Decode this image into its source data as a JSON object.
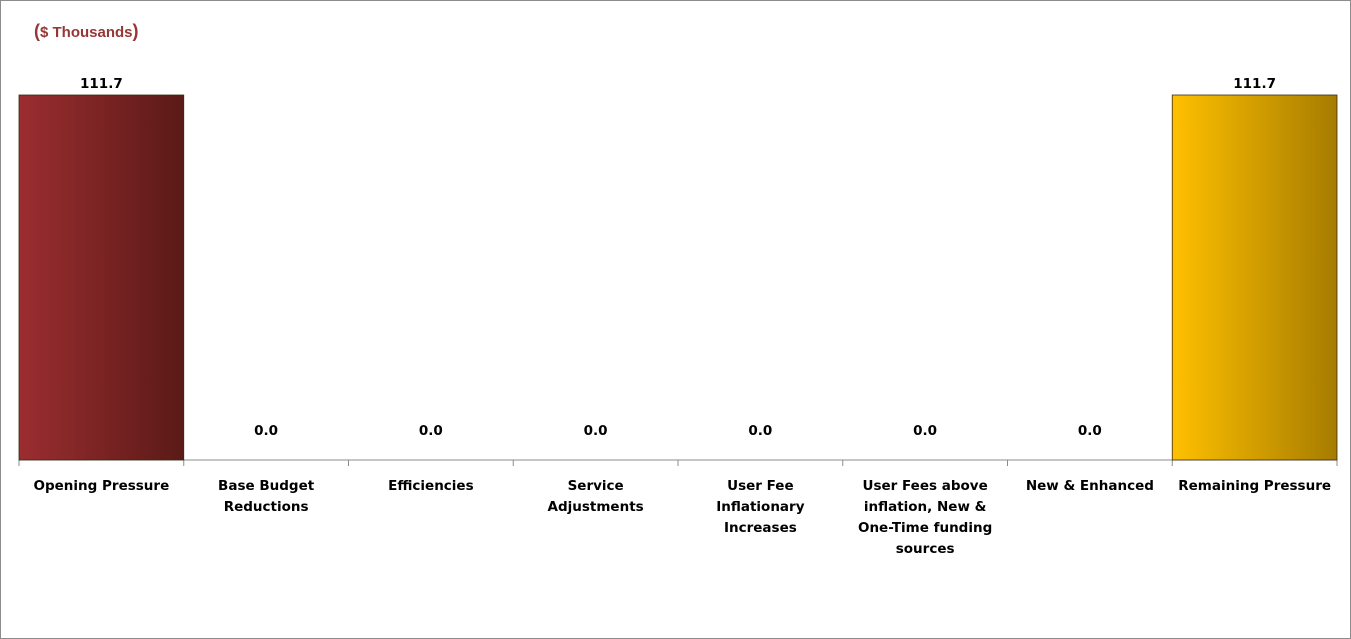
{
  "chart_data": {
    "type": "bar",
    "subtype": "waterfall",
    "units_label": "$ Thousands",
    "categories": [
      "Opening Pressure",
      "Base Budget Reductions",
      "Efficiencies",
      "Service Adjustments",
      "User Fee Inflationary Increases",
      "User Fees above inflation, New & One-Time funding sources",
      "New & Enhanced",
      "Remaining Pressure"
    ],
    "category_lines": [
      [
        "Opening Pressure"
      ],
      [
        "Base Budget",
        "Reductions"
      ],
      [
        "Efficiencies"
      ],
      [
        "Service",
        "Adjustments"
      ],
      [
        "User Fee",
        "Inflationary",
        "Increases"
      ],
      [
        "User Fees above",
        "inflation, New &",
        "One-Time funding",
        "sources"
      ],
      [
        "New & Enhanced"
      ],
      [
        "Remaining Pressure"
      ]
    ],
    "values": [
      111.7,
      0.0,
      0.0,
      0.0,
      0.0,
      0.0,
      0.0,
      111.7
    ],
    "data_labels": [
      "111.7",
      "0.0",
      "0.0",
      "0.0",
      "0.0",
      "0.0",
      "0.0",
      "111.7"
    ],
    "ylim": [
      0,
      111.7
    ],
    "grid": false,
    "legend": "none",
    "colors": {
      "units_label": "#953735",
      "opening_bar": [
        "#9b2d30",
        "#5a1a17"
      ],
      "remaining_bar": [
        "#ffc000",
        "#a67c00"
      ],
      "axis": "#8c8c8c"
    }
  }
}
